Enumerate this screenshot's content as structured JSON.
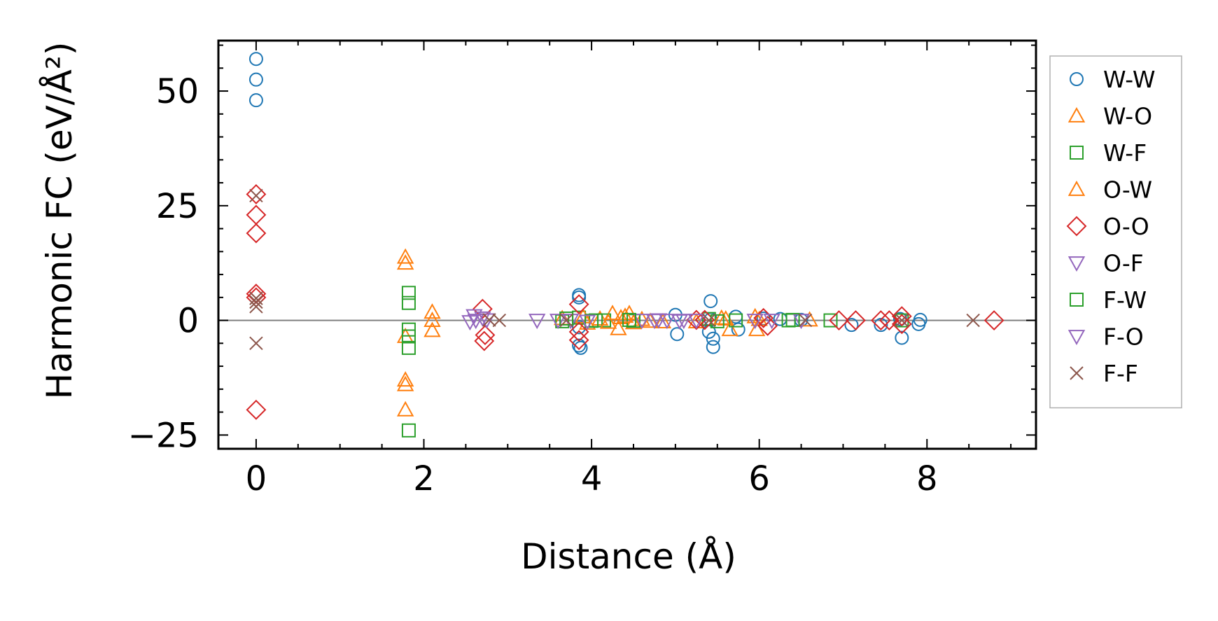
{
  "chart_data": {
    "type": "scatter",
    "title": "",
    "xlabel": "Distance (Å)",
    "ylabel": "Harmonic FC (eV/Å²)",
    "xlim": [
      -0.45,
      9.3
    ],
    "ylim": [
      -28,
      61
    ],
    "xticks": [
      0,
      2,
      4,
      6,
      8
    ],
    "yticks": [
      -25,
      0,
      25,
      50
    ],
    "xtick_labels": [
      "0",
      "2",
      "4",
      "6",
      "8"
    ],
    "ytick_labels": [
      "−25",
      "0",
      "25",
      "50"
    ],
    "zero_line": true,
    "grid": false,
    "legend": {
      "placement": "right-outside"
    },
    "series": [
      {
        "name": "W-W",
        "marker": "circle",
        "color": "#1f77b4",
        "points": [
          [
            0,
            57
          ],
          [
            0,
            52.5
          ],
          [
            0,
            48
          ],
          [
            3.85,
            5.5
          ],
          [
            3.85,
            5
          ],
          [
            3.85,
            -1.5
          ],
          [
            3.85,
            -5.5
          ],
          [
            3.87,
            -6
          ],
          [
            5.0,
            1.2
          ],
          [
            5.02,
            -3
          ],
          [
            5.42,
            4.2
          ],
          [
            5.45,
            -5.8
          ],
          [
            5.45,
            -4
          ],
          [
            5.4,
            -2.5
          ],
          [
            5.42,
            0.2
          ],
          [
            5.72,
            0.8
          ],
          [
            5.75,
            -2
          ],
          [
            6.05,
            0.4
          ],
          [
            6.25,
            0.3
          ],
          [
            6.5,
            0.1
          ],
          [
            7.1,
            -1
          ],
          [
            7.45,
            -1
          ],
          [
            7.7,
            -3.8
          ],
          [
            7.68,
            0.3
          ],
          [
            7.9,
            -0.8
          ],
          [
            7.92,
            0.1
          ]
        ]
      },
      {
        "name": "W-O",
        "marker": "triangle-up",
        "color": "#ff7f0e",
        "points": [
          [
            1.78,
            13.8
          ],
          [
            1.78,
            12.5
          ],
          [
            1.78,
            -3.5
          ],
          [
            1.78,
            -13
          ],
          [
            1.78,
            -14
          ],
          [
            1.78,
            -19.5
          ],
          [
            2.1,
            1.8
          ],
          [
            2.1,
            0
          ],
          [
            2.1,
            -2.2
          ],
          [
            3.65,
            0.4
          ],
          [
            3.95,
            -0.6
          ],
          [
            4.1,
            0.3
          ],
          [
            4.25,
            1.5
          ],
          [
            4.32,
            -1.8
          ],
          [
            4.35,
            0.6
          ],
          [
            4.45,
            1.5
          ],
          [
            4.5,
            -0.5
          ],
          [
            4.6,
            0.2
          ],
          [
            4.85,
            -0.3
          ],
          [
            5.25,
            -0.3
          ],
          [
            5.6,
            0.3
          ],
          [
            5.65,
            -2
          ],
          [
            5.95,
            0.8
          ],
          [
            5.97,
            -2
          ],
          [
            6.6,
            0.1
          ]
        ]
      },
      {
        "name": "W-F",
        "marker": "square",
        "color": "#2ca02c",
        "points": [
          [
            1.82,
            6
          ],
          [
            1.82,
            3.8
          ],
          [
            1.82,
            -2
          ],
          [
            1.82,
            -3.5
          ],
          [
            1.82,
            -6
          ],
          [
            1.82,
            -24
          ],
          [
            3.65,
            -0.2
          ],
          [
            3.85,
            0.6
          ],
          [
            4.05,
            0
          ],
          [
            4.15,
            0
          ],
          [
            4.5,
            -0.1
          ],
          [
            5.4,
            0.3
          ],
          [
            5.72,
            0
          ],
          [
            6.35,
            0
          ],
          [
            6.85,
            0
          ],
          [
            7.7,
            0
          ]
        ]
      },
      {
        "name": "O-W",
        "marker": "triangle-up",
        "color": "#ff7f0e",
        "points": [
          [
            3.9,
            0.8
          ],
          [
            4.2,
            -0.4
          ],
          [
            4.4,
            0.9
          ],
          [
            4.7,
            -0.2
          ],
          [
            5.55,
            0.5
          ],
          [
            6.0,
            0.2
          ]
        ]
      },
      {
        "name": "O-O",
        "marker": "diamond",
        "color": "#d62728",
        "points": [
          [
            0,
            27.5
          ],
          [
            0,
            23
          ],
          [
            0,
            19
          ],
          [
            0,
            5.8
          ],
          [
            0,
            5
          ],
          [
            0,
            -19.5
          ],
          [
            2.7,
            2.5
          ],
          [
            2.72,
            -4.5
          ],
          [
            2.73,
            -3.2
          ],
          [
            3.85,
            3.5
          ],
          [
            3.85,
            -2.5
          ],
          [
            3.85,
            -4.3
          ],
          [
            5.25,
            0.1
          ],
          [
            5.35,
            0.1
          ],
          [
            6.05,
            0.5
          ],
          [
            6.1,
            -1.2
          ],
          [
            6.95,
            0
          ],
          [
            7.15,
            0
          ],
          [
            7.45,
            0
          ],
          [
            7.55,
            0
          ],
          [
            7.7,
            0.9
          ],
          [
            7.7,
            -0.8
          ],
          [
            8.8,
            0
          ]
        ]
      },
      {
        "name": "O-F",
        "marker": "triangle-down",
        "color": "#9467bd",
        "points": [
          [
            2.6,
            1
          ],
          [
            2.62,
            0
          ],
          [
            2.7,
            0.5
          ],
          [
            3.35,
            0
          ],
          [
            3.6,
            0
          ],
          [
            3.75,
            0
          ],
          [
            4.6,
            0
          ],
          [
            4.75,
            0
          ],
          [
            4.9,
            0
          ],
          [
            5.1,
            0
          ],
          [
            5.25,
            0
          ],
          [
            5.95,
            0
          ],
          [
            6.15,
            0
          ],
          [
            6.5,
            0
          ]
        ]
      },
      {
        "name": "F-W",
        "marker": "square",
        "color": "#2ca02c",
        "points": [
          [
            3.7,
            0.4
          ],
          [
            4.0,
            -0.1
          ],
          [
            4.45,
            0.1
          ],
          [
            5.5,
            -0.2
          ],
          [
            6.4,
            0.1
          ]
        ]
      },
      {
        "name": "F-O",
        "marker": "triangle-down",
        "color": "#9467bd",
        "points": [
          [
            2.55,
            -0.3
          ],
          [
            2.75,
            0.1
          ],
          [
            3.95,
            -0.2
          ],
          [
            4.8,
            0.1
          ],
          [
            5.05,
            -0.1
          ]
        ]
      },
      {
        "name": "F-F",
        "marker": "x",
        "color": "#8c564b",
        "points": [
          [
            0,
            27.2
          ],
          [
            0,
            4.8
          ],
          [
            0,
            4
          ],
          [
            0,
            3
          ],
          [
            0,
            -5
          ],
          [
            2.78,
            0.1
          ],
          [
            2.9,
            0
          ],
          [
            3.7,
            0
          ],
          [
            5.4,
            0
          ],
          [
            6.55,
            0
          ],
          [
            7.7,
            0
          ],
          [
            8.55,
            0
          ]
        ]
      }
    ]
  }
}
